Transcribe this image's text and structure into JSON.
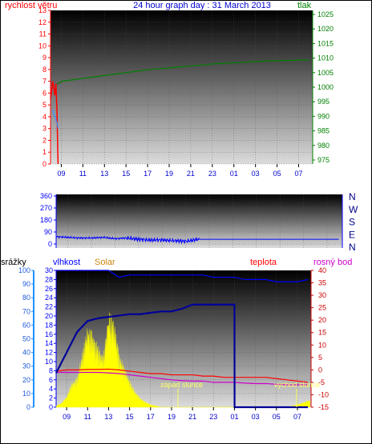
{
  "colors": {
    "wind": "#ff0000",
    "pressure": "#008000",
    "direction": "#0000ff",
    "humidity": "#0000ff",
    "temperature": "#ff0000",
    "dewpoint": "#cc00cc",
    "solar": "#ffff00",
    "rain": "#1e90ff",
    "title": "#0000cc",
    "solar_label": "#c8860a",
    "rain_label": "#000000"
  },
  "panel1": {
    "title": "24 hour graph day : 31 March 2013",
    "left_label": "rychlost větru",
    "right_label": "tlak",
    "left_ticks": [
      "0",
      "1",
      "2",
      "3",
      "4",
      "5",
      "6",
      "7",
      "8",
      "9",
      "10",
      "11",
      "12",
      "13"
    ],
    "right_ticks": [
      "975",
      "980",
      "985",
      "990",
      "995",
      "1000",
      "1005",
      "1010",
      "1015",
      "1020",
      "1025"
    ],
    "x_ticks": [
      "09",
      "11",
      "13",
      "15",
      "17",
      "19",
      "21",
      "23",
      "01",
      "03",
      "05",
      "07"
    ]
  },
  "panel2": {
    "left_ticks": [
      "0",
      "90",
      "180",
      "270",
      "360"
    ],
    "right_ticks": [
      "N",
      "E",
      "S",
      "W",
      "N"
    ]
  },
  "panel3": {
    "rain_label": "srážky",
    "humidity_label": "vlhkost",
    "solar_label": "Solar",
    "temp_label": "teplota",
    "dew_label": "rosný bod",
    "rain_ticks": [
      "0",
      "10",
      "20",
      "30",
      "40",
      "50",
      "60",
      "70",
      "80",
      "90",
      "100"
    ],
    "humidity_ticks": [
      "0",
      "2",
      "4",
      "6",
      "8",
      "10",
      "12",
      "14",
      "16",
      "18",
      "20",
      "22",
      "24",
      "26",
      "28",
      "30"
    ],
    "temp_ticks": [
      "-15",
      "-10",
      "-5",
      "0",
      "5",
      "10",
      "15",
      "20",
      "25",
      "30",
      "35",
      "40"
    ],
    "x_ticks": [
      "09",
      "11",
      "13",
      "15",
      "17",
      "19",
      "21",
      "23",
      "01",
      "03",
      "05",
      "07"
    ],
    "sunset_label": "západ slunce",
    "sunrise_label": "východ slunce"
  },
  "chart_data": [
    {
      "type": "line",
      "title": "24 hour graph day : 31 March 2013",
      "xlabel": "",
      "ylabel": "rychlost větru",
      "y2label": "tlak",
      "x_hours": [
        8.0,
        8.2,
        8.4,
        8.6,
        9,
        10,
        11,
        12,
        13,
        14,
        15,
        16,
        17,
        18,
        19,
        20,
        21,
        22,
        23,
        24,
        25,
        26,
        27,
        28,
        29,
        30,
        31,
        32
      ],
      "ylim": [
        0,
        13
      ],
      "y2lim": [
        975,
        1025
      ],
      "series": [
        {
          "name": "rychlost větru",
          "axis": "left",
          "x": [
            8.0,
            8.1,
            8.2,
            8.3,
            8.4,
            8.5,
            8.6,
            8.7
          ],
          "values": [
            5.5,
            6.2,
            7.0,
            6.5,
            5.8,
            6.8,
            4.5,
            0
          ]
        },
        {
          "name": "tlak",
          "axis": "right",
          "x": [
            8.6,
            9,
            10,
            11,
            12,
            13,
            14,
            15,
            16,
            17,
            18,
            19,
            20,
            21,
            22,
            23,
            24,
            25,
            26,
            27,
            28,
            29,
            30,
            31,
            32
          ],
          "values": [
            1001,
            1002,
            1002.5,
            1003,
            1003.5,
            1004,
            1004.5,
            1005,
            1005.5,
            1006,
            1006.3,
            1006.6,
            1007,
            1007.3,
            1007.6,
            1008,
            1008.2,
            1008.4,
            1008.6,
            1008.8,
            1009,
            1009.1,
            1009.2,
            1009.3,
            1009.4
          ]
        },
        {
          "name": "",
          "axis": "left",
          "x": [
            8.2,
            8.4,
            8.6,
            8.7
          ],
          "values": [
            4.6,
            4.0,
            3.5,
            3.0
          ]
        }
      ]
    },
    {
      "type": "line",
      "xlabel": "",
      "ylabel": "",
      "ylim": [
        0,
        360
      ],
      "series": [
        {
          "name": "",
          "x": [
            8.0,
            9,
            10,
            11,
            12,
            13,
            14,
            15,
            16,
            17,
            18,
            19,
            20,
            21,
            22,
            23,
            24,
            25,
            26,
            27,
            28,
            29,
            30,
            31,
            32
          ],
          "values": [
            55,
            50,
            45,
            45,
            50,
            40,
            45,
            35,
            30,
            30,
            25,
            20,
            35,
            35,
            35,
            35,
            35,
            35,
            35,
            35,
            35,
            35,
            35,
            35,
            35
          ]
        }
      ]
    },
    {
      "type": "line",
      "xlabel": "",
      "ylabel": "srážky",
      "series": [
        {
          "name": "vlhkost",
          "axis": "humidity",
          "ylim": [
            0,
            30
          ],
          "x": [
            8.0,
            9,
            10,
            11,
            12,
            13,
            14,
            15,
            16,
            17,
            18,
            19,
            20,
            21,
            22,
            23,
            24,
            25,
            26,
            27,
            28,
            29,
            30,
            31,
            32
          ],
          "values": [
            30,
            30,
            30,
            30,
            30,
            30,
            28.5,
            29,
            29,
            29,
            29,
            29,
            29,
            29,
            29,
            28.5,
            28.5,
            28.5,
            28,
            28,
            28,
            27.5,
            27.5,
            27.5,
            28
          ]
        },
        {
          "name": "Solar",
          "axis": "rain",
          "ylim": [
            0,
            100
          ],
          "x": [
            8.0,
            8.5,
            9,
            9.5,
            10,
            10.5,
            11,
            11.5,
            12,
            12.5,
            13,
            13.5,
            14,
            14.5,
            15,
            15.5,
            16,
            16.5,
            17,
            17.5,
            18,
            18.5,
            19,
            20,
            30,
            31,
            32
          ],
          "values": [
            1,
            3,
            8,
            18,
            22,
            40,
            60,
            55,
            45,
            38,
            70,
            65,
            40,
            30,
            20,
            12,
            7,
            4,
            2,
            1,
            0,
            0,
            0,
            0,
            0,
            2,
            5
          ]
        },
        {
          "name": "teplota",
          "axis": "temp",
          "ylim": [
            -15,
            40
          ],
          "x": [
            8.0,
            9,
            10,
            11,
            12,
            13,
            14,
            15,
            16,
            17,
            18,
            19,
            20,
            21,
            22,
            23,
            24,
            25,
            26,
            27,
            28,
            29,
            30,
            31,
            32
          ],
          "values": [
            -0.5,
            0,
            0,
            0.2,
            0.2,
            0.3,
            0,
            -0.5,
            -1,
            -1.5,
            -1.5,
            -2,
            -2,
            -2,
            -2.5,
            -2.5,
            -3,
            -3,
            -3,
            -3,
            -3,
            -3.5,
            -4,
            -4.5,
            -5
          ]
        },
        {
          "name": "rosný bod",
          "axis": "temp",
          "ylim": [
            -15,
            40
          ],
          "x": [
            8.0,
            9,
            10,
            11,
            12,
            13,
            14,
            15,
            16,
            17,
            18,
            19,
            20,
            21,
            22,
            23,
            24,
            25,
            26,
            27,
            28,
            29,
            30,
            31,
            32
          ],
          "values": [
            -1,
            -1,
            -1,
            -1,
            -1,
            -1.2,
            -1.5,
            -2,
            -2.5,
            -3,
            -3.5,
            -4,
            -4.3,
            -4.5,
            -4.5,
            -5,
            -5,
            -5,
            -5.3,
            -5.5,
            -5.5,
            -5.8,
            -6,
            -6,
            -6
          ]
        },
        {
          "name": "srážky",
          "axis": "rain",
          "ylim": [
            0,
            100
          ],
          "x": [
            8.0,
            9,
            10,
            11,
            12,
            13,
            14,
            15,
            16,
            17,
            18,
            19,
            20,
            21,
            22,
            23,
            24,
            25,
            25.01,
            32
          ],
          "values": [
            25,
            40,
            55,
            63,
            65,
            66,
            67,
            68,
            68,
            69,
            70,
            70,
            72,
            75,
            75,
            75,
            75,
            75,
            0,
            0
          ]
        }
      ],
      "annotations": [
        "západ slunce",
        "východ slunce"
      ]
    }
  ]
}
